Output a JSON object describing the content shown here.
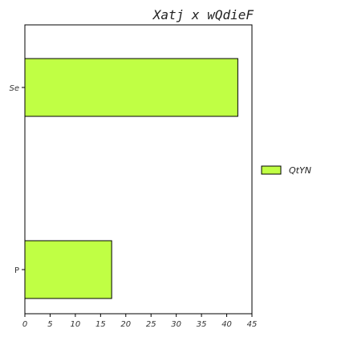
{
  "chart_data": {
    "type": "bar",
    "orientation": "horizontal",
    "title": "Xatj x wQdieF",
    "xlabel": "",
    "ylabel": "",
    "categories": [
      "Se",
      "P"
    ],
    "series": [
      {
        "name": "QtYN",
        "values": [
          42.2,
          17.2
        ],
        "color": "#c0ff44"
      }
    ],
    "xlim": [
      0,
      45
    ],
    "xticks": [
      0,
      5,
      10,
      15,
      20,
      25,
      30,
      35,
      40,
      45
    ],
    "grid": false,
    "legend": {
      "position": "right",
      "entries": [
        "QtYN"
      ]
    }
  }
}
